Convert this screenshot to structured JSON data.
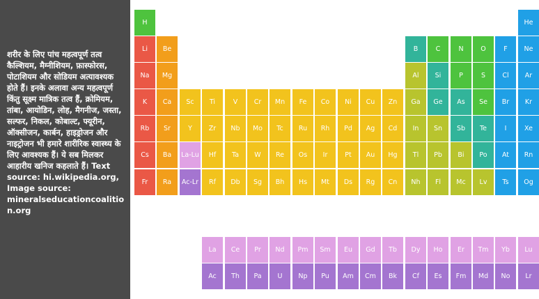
{
  "description": "शरीर के लिए पांच महत्वपूर्ण तत्व कैल्शियम, मैग्नीशियम, फ़ास्फोरस, पोटाशियम और सोडियम अत्यावश्यक होते हैं। इनके अलावा अन्य महत्वपूर्ण किंतु सूक्ष्म मात्रिक तत्व हैं, क्रोमियम, तांबा, आयोडिन, लोह, मैगनीज, जस्ता, सल्फर, निकल, कोबाल्ट, फ्यूरीन, ऑक्सीजन, कार्बन, हाइड्रोजन और नाइट्रोजन भी हमारे शारीरिक स्वास्थ्य के लिए आवश्यक हैं। ये सब मिलकर आहारीय खनिज कहलाते हैं। Text source: hi.wikipedia.org, Image source: mineralseducationcoalition.org",
  "colors": {
    "red": "#ea5846",
    "orange": "#f29e1b",
    "yellow": "#f2c31d",
    "olive": "#b8c42e",
    "teal": "#32b49a",
    "green": "#4ec33e",
    "blue": "#20a0e6",
    "purple": "#b083d6",
    "pink": "#e0a2e4",
    "violet": "#a475d0"
  },
  "elements": [
    {
      "symbol": "H",
      "row": 1,
      "col": 1,
      "color": "green"
    },
    {
      "symbol": "He",
      "row": 1,
      "col": 18,
      "color": "blue"
    },
    {
      "symbol": "Li",
      "row": 2,
      "col": 1,
      "color": "red"
    },
    {
      "symbol": "Be",
      "row": 2,
      "col": 2,
      "color": "orange"
    },
    {
      "symbol": "B",
      "row": 2,
      "col": 13,
      "color": "teal"
    },
    {
      "symbol": "C",
      "row": 2,
      "col": 14,
      "color": "green"
    },
    {
      "symbol": "N",
      "row": 2,
      "col": 15,
      "color": "green"
    },
    {
      "symbol": "O",
      "row": 2,
      "col": 16,
      "color": "green"
    },
    {
      "symbol": "F",
      "row": 2,
      "col": 17,
      "color": "blue"
    },
    {
      "symbol": "Ne",
      "row": 2,
      "col": 18,
      "color": "blue"
    },
    {
      "symbol": "Na",
      "row": 3,
      "col": 1,
      "color": "red"
    },
    {
      "symbol": "Mg",
      "row": 3,
      "col": 2,
      "color": "orange"
    },
    {
      "symbol": "Al",
      "row": 3,
      "col": 13,
      "color": "olive"
    },
    {
      "symbol": "Si",
      "row": 3,
      "col": 14,
      "color": "teal"
    },
    {
      "symbol": "P",
      "row": 3,
      "col": 15,
      "color": "green"
    },
    {
      "symbol": "S",
      "row": 3,
      "col": 16,
      "color": "green"
    },
    {
      "symbol": "Cl",
      "row": 3,
      "col": 17,
      "color": "blue"
    },
    {
      "symbol": "Ar",
      "row": 3,
      "col": 18,
      "color": "blue"
    },
    {
      "symbol": "K",
      "row": 4,
      "col": 1,
      "color": "red"
    },
    {
      "symbol": "Ca",
      "row": 4,
      "col": 2,
      "color": "orange"
    },
    {
      "symbol": "Sc",
      "row": 4,
      "col": 3,
      "color": "yellow"
    },
    {
      "symbol": "Ti",
      "row": 4,
      "col": 4,
      "color": "yellow"
    },
    {
      "symbol": "V",
      "row": 4,
      "col": 5,
      "color": "yellow"
    },
    {
      "symbol": "Cr",
      "row": 4,
      "col": 6,
      "color": "yellow"
    },
    {
      "symbol": "Mn",
      "row": 4,
      "col": 7,
      "color": "yellow"
    },
    {
      "symbol": "Fe",
      "row": 4,
      "col": 8,
      "color": "yellow"
    },
    {
      "symbol": "Co",
      "row": 4,
      "col": 9,
      "color": "yellow"
    },
    {
      "symbol": "Ni",
      "row": 4,
      "col": 10,
      "color": "yellow"
    },
    {
      "symbol": "Cu",
      "row": 4,
      "col": 11,
      "color": "yellow"
    },
    {
      "symbol": "Zn",
      "row": 4,
      "col": 12,
      "color": "yellow"
    },
    {
      "symbol": "Ga",
      "row": 4,
      "col": 13,
      "color": "olive"
    },
    {
      "symbol": "Ge",
      "row": 4,
      "col": 14,
      "color": "teal"
    },
    {
      "symbol": "As",
      "row": 4,
      "col": 15,
      "color": "teal"
    },
    {
      "symbol": "Se",
      "row": 4,
      "col": 16,
      "color": "green"
    },
    {
      "symbol": "Br",
      "row": 4,
      "col": 17,
      "color": "blue"
    },
    {
      "symbol": "Kr",
      "row": 4,
      "col": 18,
      "color": "blue"
    },
    {
      "symbol": "Rb",
      "row": 5,
      "col": 1,
      "color": "red"
    },
    {
      "symbol": "Sr",
      "row": 5,
      "col": 2,
      "color": "orange"
    },
    {
      "symbol": "Y",
      "row": 5,
      "col": 3,
      "color": "yellow"
    },
    {
      "symbol": "Zr",
      "row": 5,
      "col": 4,
      "color": "yellow"
    },
    {
      "symbol": "Nb",
      "row": 5,
      "col": 5,
      "color": "yellow"
    },
    {
      "symbol": "Mo",
      "row": 5,
      "col": 6,
      "color": "yellow"
    },
    {
      "symbol": "Tc",
      "row": 5,
      "col": 7,
      "color": "yellow"
    },
    {
      "symbol": "Ru",
      "row": 5,
      "col": 8,
      "color": "yellow"
    },
    {
      "symbol": "Rh",
      "row": 5,
      "col": 9,
      "color": "yellow"
    },
    {
      "symbol": "Pd",
      "row": 5,
      "col": 10,
      "color": "yellow"
    },
    {
      "symbol": "Ag",
      "row": 5,
      "col": 11,
      "color": "yellow"
    },
    {
      "symbol": "Cd",
      "row": 5,
      "col": 12,
      "color": "yellow"
    },
    {
      "symbol": "In",
      "row": 5,
      "col": 13,
      "color": "olive"
    },
    {
      "symbol": "Sn",
      "row": 5,
      "col": 14,
      "color": "olive"
    },
    {
      "symbol": "Sb",
      "row": 5,
      "col": 15,
      "color": "teal"
    },
    {
      "symbol": "Te",
      "row": 5,
      "col": 16,
      "color": "teal"
    },
    {
      "symbol": "I",
      "row": 5,
      "col": 17,
      "color": "blue"
    },
    {
      "symbol": "Xe",
      "row": 5,
      "col": 18,
      "color": "blue"
    },
    {
      "symbol": "Cs",
      "row": 6,
      "col": 1,
      "color": "red"
    },
    {
      "symbol": "Ba",
      "row": 6,
      "col": 2,
      "color": "orange"
    },
    {
      "symbol": "La-Lu",
      "row": 6,
      "col": 3,
      "color": "pink"
    },
    {
      "symbol": "Hf",
      "row": 6,
      "col": 4,
      "color": "yellow"
    },
    {
      "symbol": "Ta",
      "row": 6,
      "col": 5,
      "color": "yellow"
    },
    {
      "symbol": "W",
      "row": 6,
      "col": 6,
      "color": "yellow"
    },
    {
      "symbol": "Re",
      "row": 6,
      "col": 7,
      "color": "yellow"
    },
    {
      "symbol": "Os",
      "row": 6,
      "col": 8,
      "color": "yellow"
    },
    {
      "symbol": "Ir",
      "row": 6,
      "col": 9,
      "color": "yellow"
    },
    {
      "symbol": "Pt",
      "row": 6,
      "col": 10,
      "color": "yellow"
    },
    {
      "symbol": "Au",
      "row": 6,
      "col": 11,
      "color": "yellow"
    },
    {
      "symbol": "Hg",
      "row": 6,
      "col": 12,
      "color": "yellow"
    },
    {
      "symbol": "Tl",
      "row": 6,
      "col": 13,
      "color": "olive"
    },
    {
      "symbol": "Pb",
      "row": 6,
      "col": 14,
      "color": "olive"
    },
    {
      "symbol": "Bi",
      "row": 6,
      "col": 15,
      "color": "olive"
    },
    {
      "symbol": "Po",
      "row": 6,
      "col": 16,
      "color": "teal"
    },
    {
      "symbol": "At",
      "row": 6,
      "col": 17,
      "color": "blue"
    },
    {
      "symbol": "Rn",
      "row": 6,
      "col": 18,
      "color": "blue"
    },
    {
      "symbol": "Fr",
      "row": 7,
      "col": 1,
      "color": "red"
    },
    {
      "symbol": "Ra",
      "row": 7,
      "col": 2,
      "color": "orange"
    },
    {
      "symbol": "Ac-Lr",
      "row": 7,
      "col": 3,
      "color": "violet"
    },
    {
      "symbol": "Rf",
      "row": 7,
      "col": 4,
      "color": "yellow"
    },
    {
      "symbol": "Db",
      "row": 7,
      "col": 5,
      "color": "yellow"
    },
    {
      "symbol": "Sg",
      "row": 7,
      "col": 6,
      "color": "yellow"
    },
    {
      "symbol": "Bh",
      "row": 7,
      "col": 7,
      "color": "yellow"
    },
    {
      "symbol": "Hs",
      "row": 7,
      "col": 8,
      "color": "yellow"
    },
    {
      "symbol": "Mt",
      "row": 7,
      "col": 9,
      "color": "yellow"
    },
    {
      "symbol": "Ds",
      "row": 7,
      "col": 10,
      "color": "yellow"
    },
    {
      "symbol": "Rg",
      "row": 7,
      "col": 11,
      "color": "yellow"
    },
    {
      "symbol": "Cn",
      "row": 7,
      "col": 12,
      "color": "yellow"
    },
    {
      "symbol": "Nh",
      "row": 7,
      "col": 13,
      "color": "olive"
    },
    {
      "symbol": "Fl",
      "row": 7,
      "col": 14,
      "color": "olive"
    },
    {
      "symbol": "Mc",
      "row": 7,
      "col": 15,
      "color": "olive"
    },
    {
      "symbol": "Lv",
      "row": 7,
      "col": 16,
      "color": "olive"
    },
    {
      "symbol": "Ts",
      "row": 7,
      "col": 17,
      "color": "blue"
    },
    {
      "symbol": "Og",
      "row": 7,
      "col": 18,
      "color": "blue"
    },
    {
      "symbol": "La",
      "row": 9,
      "col": 4,
      "color": "pink"
    },
    {
      "symbol": "Ce",
      "row": 9,
      "col": 5,
      "color": "pink"
    },
    {
      "symbol": "Pr",
      "row": 9,
      "col": 6,
      "color": "pink"
    },
    {
      "symbol": "Nd",
      "row": 9,
      "col": 7,
      "color": "pink"
    },
    {
      "symbol": "Pm",
      "row": 9,
      "col": 8,
      "color": "pink"
    },
    {
      "symbol": "Sm",
      "row": 9,
      "col": 9,
      "color": "pink"
    },
    {
      "symbol": "Eu",
      "row": 9,
      "col": 10,
      "color": "pink"
    },
    {
      "symbol": "Gd",
      "row": 9,
      "col": 11,
      "color": "pink"
    },
    {
      "symbol": "Tb",
      "row": 9,
      "col": 12,
      "color": "pink"
    },
    {
      "symbol": "Dy",
      "row": 9,
      "col": 13,
      "color": "pink"
    },
    {
      "symbol": "Ho",
      "row": 9,
      "col": 14,
      "color": "pink"
    },
    {
      "symbol": "Er",
      "row": 9,
      "col": 15,
      "color": "pink"
    },
    {
      "symbol": "Tm",
      "row": 9,
      "col": 16,
      "color": "pink"
    },
    {
      "symbol": "Yb",
      "row": 9,
      "col": 17,
      "color": "pink"
    },
    {
      "symbol": "Lu",
      "row": 9,
      "col": 18,
      "color": "pink"
    },
    {
      "symbol": "Ac",
      "row": 10,
      "col": 4,
      "color": "violet"
    },
    {
      "symbol": "Th",
      "row": 10,
      "col": 5,
      "color": "violet"
    },
    {
      "symbol": "Pa",
      "row": 10,
      "col": 6,
      "color": "violet"
    },
    {
      "symbol": "U",
      "row": 10,
      "col": 7,
      "color": "violet"
    },
    {
      "symbol": "Np",
      "row": 10,
      "col": 8,
      "color": "violet"
    },
    {
      "symbol": "Pu",
      "row": 10,
      "col": 9,
      "color": "violet"
    },
    {
      "symbol": "Am",
      "row": 10,
      "col": 10,
      "color": "violet"
    },
    {
      "symbol": "Cm",
      "row": 10,
      "col": 11,
      "color": "violet"
    },
    {
      "symbol": "Bk",
      "row": 10,
      "col": 12,
      "color": "violet"
    },
    {
      "symbol": "Cf",
      "row": 10,
      "col": 13,
      "color": "violet"
    },
    {
      "symbol": "Es",
      "row": 10,
      "col": 14,
      "color": "violet"
    },
    {
      "symbol": "Fm",
      "row": 10,
      "col": 15,
      "color": "violet"
    },
    {
      "symbol": "Md",
      "row": 10,
      "col": 16,
      "color": "violet"
    },
    {
      "symbol": "No",
      "row": 10,
      "col": 17,
      "color": "violet"
    },
    {
      "symbol": "Lr",
      "row": 10,
      "col": 18,
      "color": "violet"
    }
  ]
}
